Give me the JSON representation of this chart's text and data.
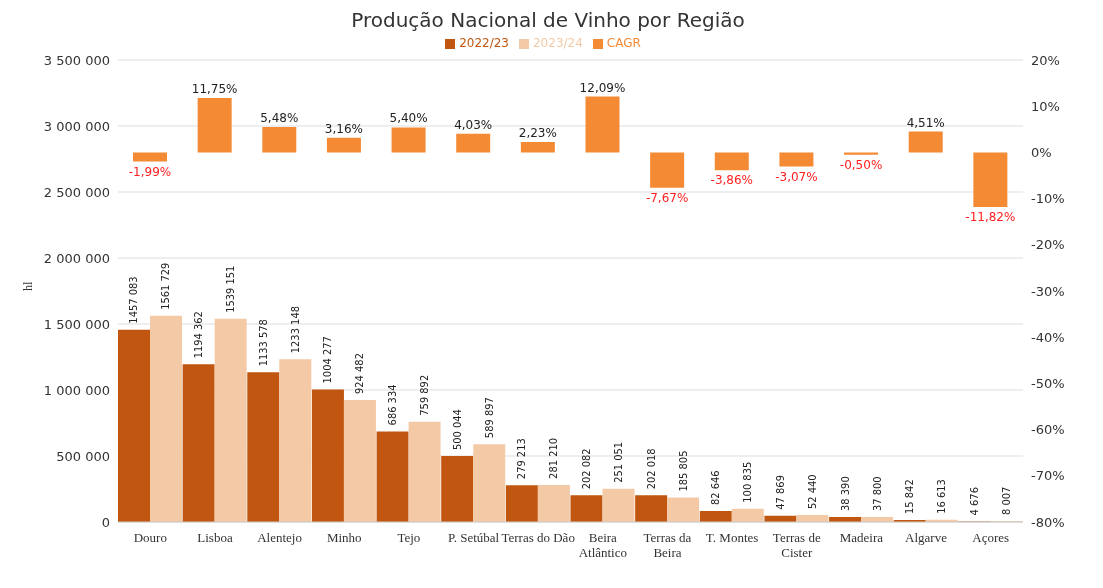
{
  "chart_data": {
    "type": "bar",
    "title": "Produção Nacional de Vinho por Região",
    "ylabel": "hl",
    "categories": [
      "Douro",
      "Lisboa",
      "Alentejo",
      "Minho",
      "Tejo",
      "P. Setúbal",
      "Terras do Dão",
      "Beira Atlântico",
      "Terras da Beira",
      "T. Montes",
      "Terras de Cister",
      "Madeira",
      "Algarve",
      "Açores"
    ],
    "series": [
      {
        "name": "2022/23",
        "color": "#c0560f",
        "values": [
          1457083,
          1194362,
          1133578,
          1004277,
          686334,
          500044,
          279213,
          202082,
          202018,
          82646,
          47869,
          38390,
          15842,
          4676
        ],
        "value_labels": [
          "1457 083",
          "1194 362",
          "1133 578",
          "1004 277",
          "686 334",
          "500 044",
          "279 213",
          "202 082",
          "202 018",
          "82 646",
          "47 869",
          "38 390",
          "15 842",
          "4 676"
        ]
      },
      {
        "name": "2023/24",
        "color": "#f3c9a6",
        "values": [
          1561729,
          1539151,
          1233148,
          924482,
          759892,
          589897,
          281210,
          251051,
          185805,
          100835,
          52440,
          37800,
          16613,
          8007
        ],
        "value_labels": [
          "1561 729",
          "1539 151",
          "1233 148",
          "924 482",
          "759 892",
          "589 897",
          "281 210",
          "251 051",
          "185 805",
          "100 835",
          "52 440",
          "37 800",
          "16 613",
          "8 007"
        ]
      },
      {
        "name": "CAGR",
        "color": "#f58a35",
        "axis": "y2",
        "values": [
          -1.99,
          11.75,
          5.48,
          3.16,
          5.4,
          4.03,
          2.23,
          12.09,
          -7.67,
          -3.86,
          -3.07,
          -0.5,
          4.51,
          -11.82
        ],
        "value_labels": [
          "-1,99%",
          "11,75%",
          "5,48%",
          "3,16%",
          "5,40%",
          "4,03%",
          "2,23%",
          "12,09%",
          "-7,67%",
          "-3,86%",
          "-3,07%",
          "-0,50%",
          "4,51%",
          "-11,82%"
        ]
      }
    ],
    "ylim": [
      0,
      3500000
    ],
    "yticks": [
      {
        "value": 0,
        "label": "0"
      },
      {
        "value": 500000,
        "label": "500 000"
      },
      {
        "value": 1000000,
        "label": "1 000 000"
      },
      {
        "value": 1500000,
        "label": "1 500 000"
      },
      {
        "value": 2000000,
        "label": "2 000 000"
      },
      {
        "value": 2500000,
        "label": "2 500 000"
      },
      {
        "value": 3000000,
        "label": "3 000 000"
      },
      {
        "value": 3500000,
        "label": "3 500 000"
      }
    ],
    "y2lim": [
      -80,
      20
    ],
    "y2ticks": [
      {
        "value": 20,
        "label": "20%"
      },
      {
        "value": 10,
        "label": "10%"
      },
      {
        "value": 0,
        "label": "0%"
      },
      {
        "value": -10,
        "label": "-10%"
      },
      {
        "value": -20,
        "label": "-20%"
      },
      {
        "value": -30,
        "label": "-30%"
      },
      {
        "value": -40,
        "label": "-40%"
      },
      {
        "value": -50,
        "label": "-50%"
      },
      {
        "value": -60,
        "label": "-60%"
      },
      {
        "value": -70,
        "label": "-70%"
      },
      {
        "value": -80,
        "label": "-80%"
      }
    ],
    "grid": "y",
    "legend": "top"
  }
}
